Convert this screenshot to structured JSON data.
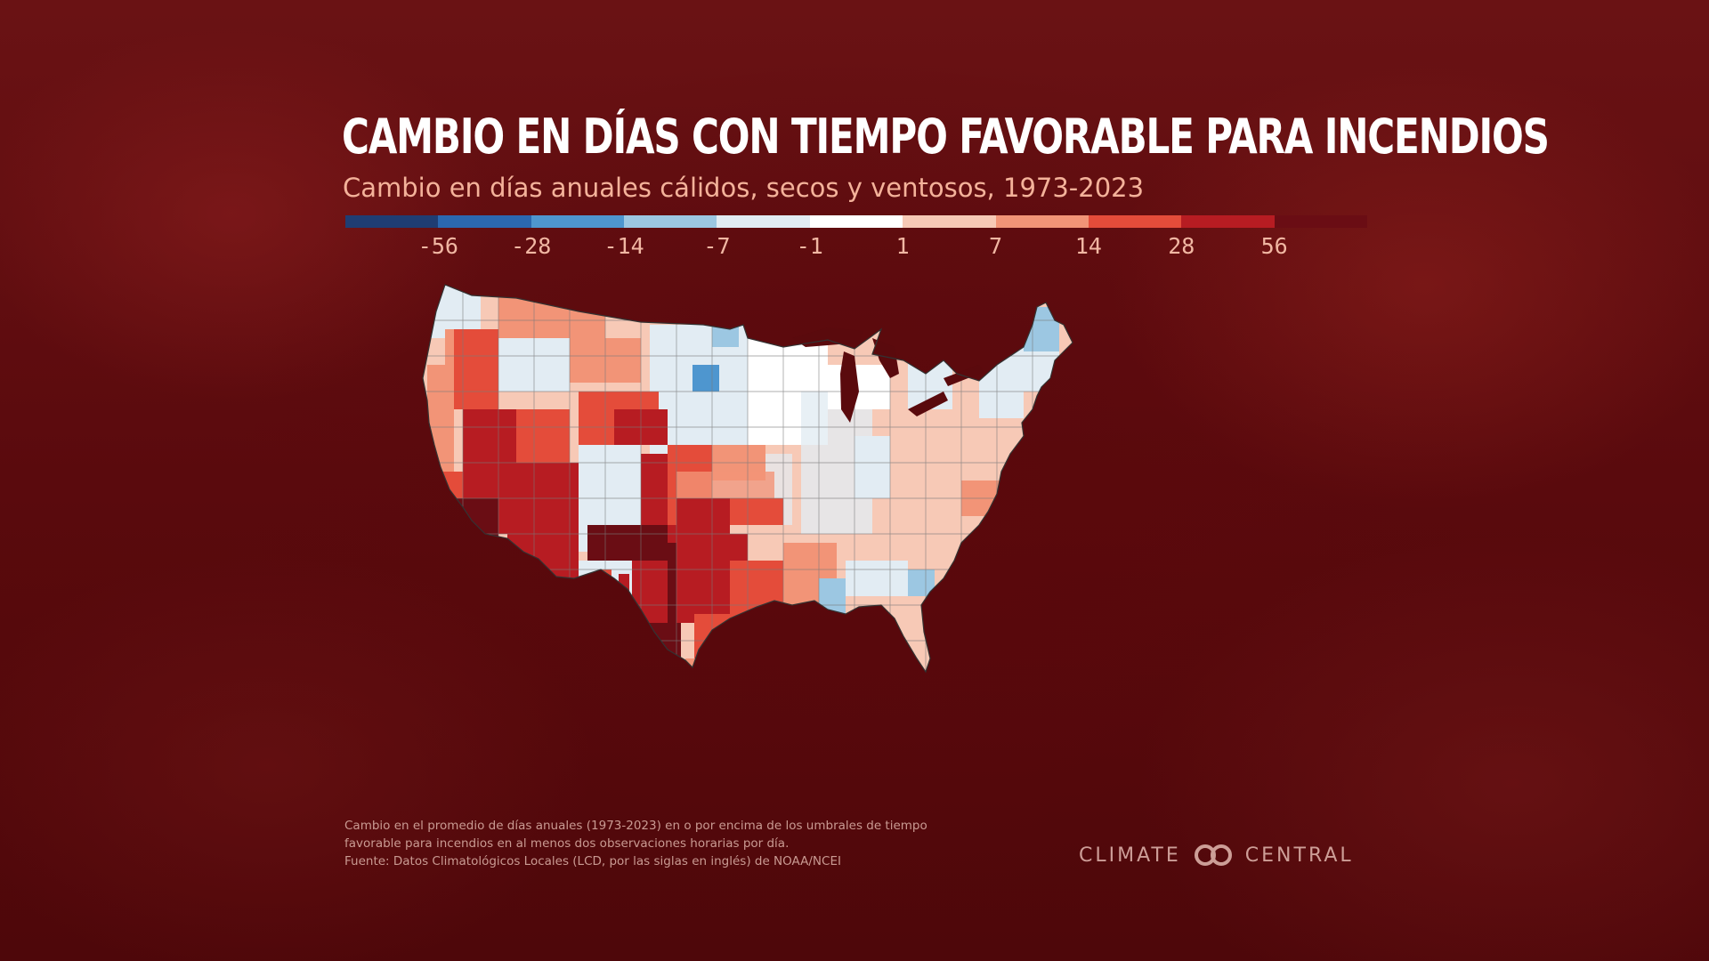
{
  "title": "Cambio en días con tiempo favorable para incendios",
  "subtitle": "Cambio en días anuales cálidos, secos y ventosos, 1973-2023",
  "legend": {
    "colors": [
      "#1f3d73",
      "#2b68b0",
      "#4e96cf",
      "#9cc7e2",
      "#e2ecf3",
      "#ffffff",
      "#f7c9b6",
      "#f29477",
      "#e44c3a",
      "#b71c22",
      "#6a0d14"
    ],
    "tick_labels": [
      "-56",
      "-28",
      "-14",
      "-7",
      "-1",
      "1",
      "7",
      "14",
      "28",
      "56"
    ]
  },
  "map": {
    "region": "Estados Unidos contiguos",
    "colors": {
      "very_high": "#6a0d14",
      "high": "#b71c22",
      "moderate_high": "#e44c3a",
      "moderate": "#f29477",
      "low": "#f7c9b6",
      "none": "#ffffff",
      "slight_neg": "#e2ecf3",
      "neg": "#9cc7e2",
      "strong_neg": "#4e96cf"
    }
  },
  "footnote": {
    "line1": "Cambio en el promedio de días anuales (1973-2023) en o por encima de los umbrales de tiempo",
    "line2": "favorable para incendios en al menos dos observaciones horarias por día.",
    "line3": "Fuente: Datos Climatológicos Locales (LCD, por las siglas en inglés) de NOAA/NCEI"
  },
  "logo": {
    "left": "CLIMATE",
    "right": "CENTRAL"
  }
}
